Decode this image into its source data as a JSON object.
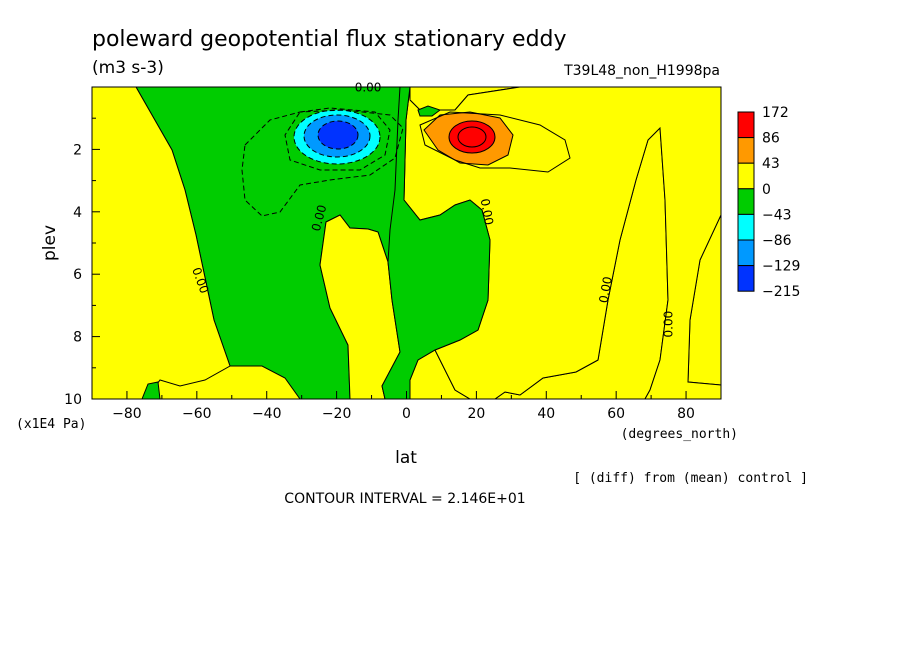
{
  "chart_data": {
    "type": "heatmap",
    "title": "poleward geopotential flux stationary eddy",
    "units": "(m3 s-3)",
    "run_label": "T39L48_non_H1998pa",
    "xlabel": "lat",
    "x_units": "(degrees_north)",
    "ylabel": "plev",
    "y_units": "(x1E4 Pa)",
    "xlim": [
      -90,
      90
    ],
    "ylim": [
      10,
      0
    ],
    "x_ticks": [
      -80,
      -60,
      -40,
      -20,
      0,
      20,
      40,
      60,
      80
    ],
    "x_tick_labels": [
      "−80",
      "−60",
      "−40",
      "−20",
      "0",
      "20",
      "40",
      "60",
      "80"
    ],
    "y_ticks": [
      2,
      4,
      6,
      8,
      10
    ],
    "y_tick_labels": [
      "2",
      "4",
      "6",
      "8",
      "10"
    ],
    "legend": {
      "placement": "right",
      "levels": [
        "172",
        "86",
        "43",
        "0",
        "−43",
        "−86",
        "−129",
        "−215"
      ],
      "colors": [
        "#ff0000",
        "#ff9900",
        "#ffff00",
        "#00cc00",
        "#00ffff",
        "#0099ff",
        "#0033ff"
      ]
    },
    "contour_labels": [
      "0.00",
      "0.00",
      "0.00",
      "0.00",
      "0.00",
      "0.00"
    ],
    "contour_interval_text": "CONTOUR INTERVAL = 2.146E+01",
    "note": "[ (diff) from (mean) control ]",
    "features": [
      {
        "sign": "negative",
        "lat": -20,
        "plev": 1.6,
        "min": -215
      },
      {
        "sign": "positive",
        "lat": 18,
        "plev": 1.6,
        "max": 172
      }
    ]
  }
}
